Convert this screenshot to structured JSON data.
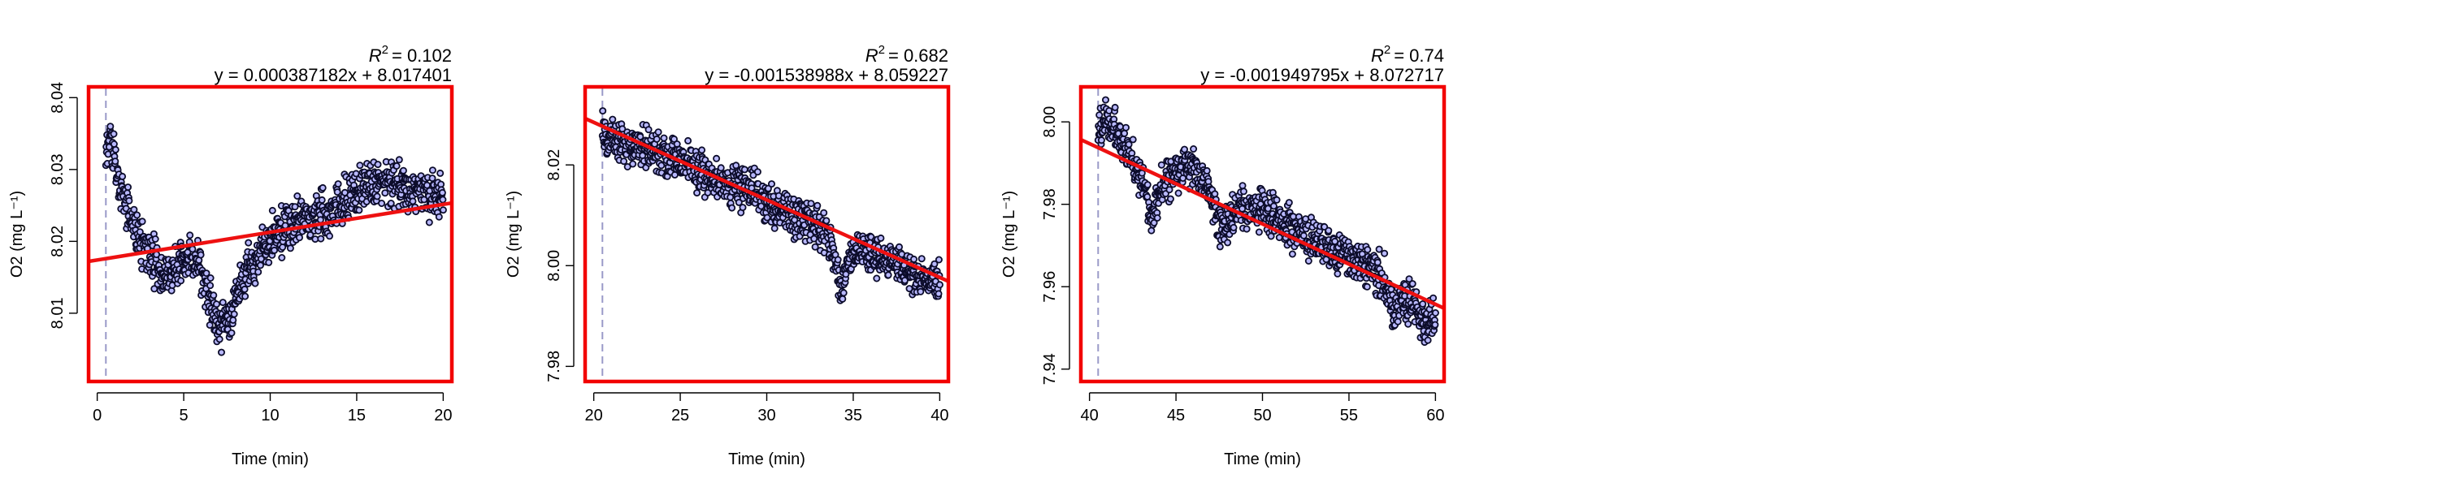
{
  "chart_data": [
    {
      "type": "scatter",
      "xlabel": "Time (min)",
      "ylabel": "O2 (mg L⁻¹)",
      "xlim": [
        -0.5,
        20.5
      ],
      "ylim": [
        8.0005,
        8.0415
      ],
      "xticks": [
        0,
        5,
        10,
        15,
        20
      ],
      "yticks": [
        8.01,
        8.02,
        8.03,
        8.04
      ],
      "ytick_labels": [
        "8.01",
        "8.02",
        "8.03",
        "8.04"
      ],
      "grid": false,
      "r2_label": "R",
      "r2_value": "= 0.102",
      "equation": "y = 0.000387182x + 8.017401",
      "fit": {
        "slope": 0.000387182,
        "intercept": 8.017401,
        "x_range": [
          -0.5,
          20.5
        ]
      },
      "start_marker_x": 0.5,
      "series": [
        {
          "values": [
            [
              0.5,
              8.0325
            ],
            [
              0.8,
              8.034
            ],
            [
              1.0,
              8.031
            ],
            [
              1.3,
              8.028
            ],
            [
              1.6,
              8.026
            ],
            [
              2.0,
              8.023
            ],
            [
              2.5,
              8.02
            ],
            [
              3.0,
              8.018
            ],
            [
              3.5,
              8.016
            ],
            [
              4.0,
              8.015
            ],
            [
              4.5,
              8.016
            ],
            [
              5.0,
              8.017
            ],
            [
              5.5,
              8.018
            ],
            [
              6.0,
              8.016
            ],
            [
              6.5,
              8.012
            ],
            [
              7.0,
              8.008
            ],
            [
              7.5,
              8.009
            ],
            [
              8.0,
              8.012
            ],
            [
              8.5,
              8.015
            ],
            [
              9.0,
              8.017
            ],
            [
              10.0,
              8.02
            ],
            [
              11.0,
              8.022
            ],
            [
              12.0,
              8.023
            ],
            [
              13.0,
              8.024
            ],
            [
              14.0,
              8.025
            ],
            [
              15.0,
              8.027
            ],
            [
              16.0,
              8.028
            ],
            [
              17.0,
              8.028
            ],
            [
              18.0,
              8.027
            ],
            [
              19.0,
              8.027
            ],
            [
              20.0,
              8.026
            ]
          ],
          "noise": 0.0035
        }
      ]
    },
    {
      "type": "scatter",
      "xlabel": "Time (min)",
      "ylabel": "O2 (mg L⁻¹)",
      "xlim": [
        19.5,
        40.5
      ],
      "ylim": [
        7.977,
        8.0355
      ],
      "xticks": [
        20,
        25,
        30,
        35,
        40
      ],
      "yticks": [
        7.98,
        8.0,
        8.02
      ],
      "ytick_labels": [
        "7.98",
        "8.00",
        "8.02"
      ],
      "grid": false,
      "r2_label": "R",
      "r2_value": "= 0.682",
      "equation": "y = -0.001538988x + 8.059227",
      "fit": {
        "slope": -0.001538988,
        "intercept": 8.059227,
        "x_range": [
          19.5,
          40.5
        ]
      },
      "start_marker_x": 20.5,
      "series": [
        {
          "values": [
            [
              20.5,
              8.026
            ],
            [
              22.0,
              8.024
            ],
            [
              23.5,
              8.023
            ],
            [
              25.0,
              8.021
            ],
            [
              26.5,
              8.018
            ],
            [
              28.0,
              8.016
            ],
            [
              29.5,
              8.014
            ],
            [
              31.0,
              8.011
            ],
            [
              32.5,
              8.009
            ],
            [
              33.5,
              8.006
            ],
            [
              34.3,
              7.996
            ],
            [
              35.0,
              8.003
            ],
            [
              36.5,
              8.002
            ],
            [
              38.0,
              7.999
            ],
            [
              39.5,
              7.997
            ],
            [
              40.0,
              7.997
            ]
          ],
          "noise": 0.0045
        }
      ]
    },
    {
      "type": "scatter",
      "xlabel": "Time (min)",
      "ylabel": "O2 (mg L⁻¹)",
      "xlim": [
        39.5,
        60.5
      ],
      "ylim": [
        7.937,
        8.0085
      ],
      "xticks": [
        40,
        45,
        50,
        55,
        60
      ],
      "yticks": [
        7.94,
        7.96,
        7.98,
        8.0
      ],
      "ytick_labels": [
        "7.94",
        "7.96",
        "7.98",
        "8.00"
      ],
      "grid": false,
      "r2_label": "R",
      "r2_value": "= 0.74",
      "equation": "y = -0.001949795x + 8.072717",
      "fit": {
        "slope": -0.001949795,
        "intercept": 8.072717,
        "x_range": [
          39.5,
          60.5
        ]
      },
      "start_marker_x": 40.5,
      "series": [
        {
          "values": [
            [
              40.5,
              7.998
            ],
            [
              41.0,
              8.001
            ],
            [
              42.0,
              7.994
            ],
            [
              43.0,
              7.987
            ],
            [
              43.5,
              7.978
            ],
            [
              44.5,
              7.986
            ],
            [
              46.0,
              7.99
            ],
            [
              47.0,
              7.983
            ],
            [
              47.5,
              7.974
            ],
            [
              48.5,
              7.978
            ],
            [
              50.0,
              7.979
            ],
            [
              51.5,
              7.975
            ],
            [
              53.0,
              7.97
            ],
            [
              54.5,
              7.968
            ],
            [
              56.0,
              7.966
            ],
            [
              57.0,
              7.962
            ],
            [
              57.5,
              7.954
            ],
            [
              58.5,
              7.957
            ],
            [
              59.5,
              7.95
            ],
            [
              60.0,
              7.953
            ]
          ],
          "noise": 0.0055
        }
      ]
    }
  ],
  "colors": {
    "frame": "#f20000",
    "fit_line": "#ee1111",
    "point_stroke": "#0c0c2a",
    "point_fill": "#b8b8ff",
    "start_marker": "#9a9ac8"
  }
}
